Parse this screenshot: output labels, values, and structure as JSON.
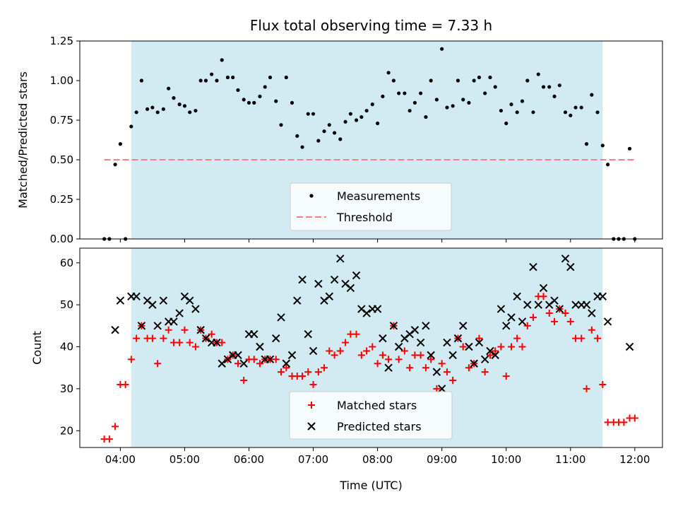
{
  "chart_data": [
    {
      "type": "scatter",
      "title": "Flux total observing time = 7.33 h",
      "xlabel": "",
      "ylabel": "Matched/Predicted stars",
      "xlim_hours": [
        3.37,
        12.43
      ],
      "ylim": [
        0,
        1.25
      ],
      "yticks": [
        0.0,
        0.25,
        0.5,
        0.75,
        1.0,
        1.25
      ],
      "ytick_labels": [
        "0.00",
        "0.25",
        "0.50",
        "0.75",
        "1.00",
        "1.25"
      ],
      "xticks": [
        4,
        5,
        6,
        7,
        8,
        9,
        10,
        11,
        12
      ],
      "xtick_labels": [],
      "observing_window": [
        4.17,
        11.5
      ],
      "legend": {
        "position": "lower center",
        "entries": [
          "Measurements",
          "Threshold"
        ]
      },
      "series": [
        {
          "name": "Measurements",
          "marker": "dot",
          "color": "#000000",
          "x": [
            3.75,
            3.83,
            3.92,
            4.0,
            4.08,
            4.17,
            4.25,
            4.33,
            4.42,
            4.5,
            4.58,
            4.67,
            4.75,
            4.83,
            4.92,
            5.0,
            5.08,
            5.17,
            5.25,
            5.33,
            5.42,
            5.5,
            5.58,
            5.67,
            5.75,
            5.83,
            5.92,
            6.0,
            6.08,
            6.17,
            6.25,
            6.33,
            6.42,
            6.5,
            6.58,
            6.67,
            6.75,
            6.83,
            6.92,
            7.0,
            7.08,
            7.17,
            7.25,
            7.33,
            7.42,
            7.5,
            7.58,
            7.67,
            7.75,
            7.83,
            7.92,
            8.0,
            8.08,
            8.17,
            8.25,
            8.33,
            8.42,
            8.5,
            8.58,
            8.67,
            8.75,
            8.83,
            8.92,
            9.0,
            9.08,
            9.17,
            9.25,
            9.33,
            9.42,
            9.5,
            9.58,
            9.67,
            9.75,
            9.83,
            9.92,
            10.0,
            10.08,
            10.17,
            10.25,
            10.33,
            10.42,
            10.5,
            10.58,
            10.67,
            10.75,
            10.83,
            10.92,
            11.0,
            11.08,
            11.17,
            11.25,
            11.33,
            11.42,
            11.5,
            11.58,
            11.67,
            11.75,
            11.83,
            11.92,
            12.0
          ],
          "y": [
            0.0,
            0.0,
            0.47,
            0.6,
            0.0,
            0.71,
            0.8,
            1.0,
            0.82,
            0.83,
            0.8,
            0.82,
            0.95,
            0.89,
            0.85,
            0.84,
            0.8,
            0.81,
            1.0,
            1.0,
            1.04,
            1.0,
            1.13,
            1.02,
            1.02,
            0.94,
            0.88,
            0.86,
            0.86,
            0.9,
            0.96,
            1.02,
            0.87,
            0.72,
            1.02,
            0.86,
            0.65,
            0.58,
            0.79,
            0.79,
            0.62,
            0.68,
            0.72,
            0.67,
            0.63,
            0.74,
            0.79,
            0.75,
            0.77,
            0.81,
            0.85,
            0.73,
            0.9,
            1.05,
            1.0,
            0.92,
            0.92,
            0.81,
            0.86,
            0.92,
            0.77,
            1.0,
            0.88,
            1.2,
            0.83,
            0.84,
            1.0,
            0.88,
            0.86,
            1.0,
            1.02,
            0.92,
            1.02,
            0.96,
            0.81,
            0.73,
            0.85,
            0.8,
            0.87,
            1.0,
            0.8,
            1.04,
            0.96,
            0.96,
            0.9,
            0.97,
            0.8,
            0.78,
            0.83,
            0.83,
            0.6,
            0.91,
            0.8,
            0.59,
            0.47,
            0.0,
            0.0,
            0.0,
            0.57,
            0.0
          ]
        },
        {
          "name": "Threshold",
          "marker": "dashed-line",
          "color": "#ff7f7f",
          "x": [
            3.75,
            12.0
          ],
          "y": [
            0.5,
            0.5
          ]
        }
      ]
    },
    {
      "type": "scatter",
      "title": "",
      "xlabel": "Time (UTC)",
      "ylabel": "Count",
      "xlim_hours": [
        3.37,
        12.43
      ],
      "ylim": [
        16,
        63.5
      ],
      "yticks": [
        20,
        30,
        40,
        50,
        60
      ],
      "ytick_labels": [
        "20",
        "30",
        "40",
        "50",
        "60"
      ],
      "xticks": [
        4,
        5,
        6,
        7,
        8,
        9,
        10,
        11,
        12
      ],
      "xtick_labels": [
        "04:00",
        "05:00",
        "06:00",
        "07:00",
        "08:00",
        "09:00",
        "10:00",
        "11:00",
        "12:00"
      ],
      "observing_window": [
        4.17,
        11.5
      ],
      "legend": {
        "position": "lower center",
        "entries": [
          "Matched stars",
          "Predicted stars"
        ]
      },
      "series": [
        {
          "name": "Matched stars",
          "marker": "plus",
          "color": "#ff0000",
          "x": [
            3.75,
            3.83,
            3.92,
            4.0,
            4.08,
            4.17,
            4.25,
            4.33,
            4.42,
            4.5,
            4.58,
            4.67,
            4.75,
            4.83,
            4.92,
            5.0,
            5.08,
            5.17,
            5.25,
            5.33,
            5.42,
            5.5,
            5.58,
            5.67,
            5.75,
            5.83,
            5.92,
            6.0,
            6.08,
            6.17,
            6.25,
            6.33,
            6.42,
            6.5,
            6.58,
            6.67,
            6.75,
            6.83,
            6.92,
            7.0,
            7.08,
            7.17,
            7.25,
            7.33,
            7.42,
            7.5,
            7.58,
            7.67,
            7.75,
            7.83,
            7.92,
            8.0,
            8.08,
            8.17,
            8.25,
            8.33,
            8.42,
            8.5,
            8.58,
            8.67,
            8.75,
            8.83,
            8.92,
            9.0,
            9.08,
            9.17,
            9.25,
            9.33,
            9.42,
            9.5,
            9.58,
            9.67,
            9.75,
            9.83,
            9.92,
            10.0,
            10.08,
            10.17,
            10.25,
            10.33,
            10.42,
            10.5,
            10.58,
            10.67,
            10.75,
            10.83,
            10.92,
            11.0,
            11.08,
            11.17,
            11.25,
            11.33,
            11.42,
            11.5,
            11.58,
            11.67,
            11.75,
            11.83,
            11.92,
            12.0
          ],
          "y": [
            18,
            18,
            21,
            31,
            31,
            37,
            42,
            45,
            42,
            42,
            36,
            42,
            44,
            41,
            41,
            44,
            41,
            40,
            44,
            42,
            43,
            41,
            41,
            37,
            38,
            36,
            32,
            37,
            37,
            36,
            37,
            37,
            37,
            34,
            35,
            33,
            33,
            33,
            34,
            31,
            34,
            35,
            39,
            38,
            39,
            41,
            43,
            43,
            38,
            39,
            40,
            36,
            38,
            37,
            45,
            37,
            39,
            35,
            38,
            38,
            35,
            37,
            30,
            36,
            34,
            32,
            42,
            40,
            35,
            36,
            42,
            34,
            38,
            39,
            40,
            33,
            40,
            42,
            40,
            45,
            47,
            52,
            52,
            48,
            46,
            49,
            48,
            46,
            42,
            42,
            30,
            44,
            42,
            31,
            22,
            22,
            22,
            22,
            23,
            23
          ]
        },
        {
          "name": "Predicted stars",
          "marker": "x",
          "color": "#000000",
          "x": [
            3.92,
            4.0,
            4.17,
            4.25,
            4.33,
            4.42,
            4.5,
            4.58,
            4.67,
            4.75,
            4.83,
            4.92,
            5.0,
            5.08,
            5.17,
            5.25,
            5.33,
            5.42,
            5.5,
            5.58,
            5.67,
            5.75,
            5.83,
            5.92,
            6.0,
            6.08,
            6.17,
            6.25,
            6.33,
            6.42,
            6.5,
            6.58,
            6.67,
            6.75,
            6.83,
            6.92,
            7.0,
            7.08,
            7.17,
            7.25,
            7.33,
            7.42,
            7.5,
            7.58,
            7.67,
            7.75,
            7.83,
            7.92,
            8.0,
            8.08,
            8.17,
            8.25,
            8.33,
            8.42,
            8.5,
            8.58,
            8.67,
            8.75,
            8.83,
            8.92,
            9.0,
            9.08,
            9.17,
            9.25,
            9.33,
            9.42,
            9.5,
            9.58,
            9.67,
            9.75,
            9.83,
            9.92,
            10.0,
            10.08,
            10.17,
            10.25,
            10.33,
            10.42,
            10.5,
            10.58,
            10.67,
            10.75,
            10.83,
            10.92,
            11.0,
            11.08,
            11.17,
            11.25,
            11.33,
            11.42,
            11.5,
            11.58,
            11.92
          ],
          "y": [
            44,
            51,
            52,
            52,
            45,
            51,
            50,
            45,
            51,
            46,
            46,
            48,
            52,
            51,
            49,
            44,
            42,
            41,
            41,
            36,
            37,
            38,
            38,
            36,
            43,
            43,
            40,
            37,
            37,
            42,
            47,
            36,
            38,
            51,
            56,
            43,
            39,
            55,
            51,
            52,
            56,
            61,
            55,
            54,
            57,
            49,
            48,
            49,
            49,
            42,
            35,
            45,
            40,
            42,
            43,
            44,
            41,
            45,
            38,
            34,
            30,
            41,
            38,
            42,
            45,
            40,
            36,
            41,
            37,
            39,
            38,
            49,
            45,
            47,
            52,
            46,
            50,
            59,
            50,
            54,
            50,
            51,
            49,
            61,
            59,
            50,
            50,
            50,
            48,
            52,
            52,
            46,
            40
          ]
        }
      ]
    }
  ]
}
